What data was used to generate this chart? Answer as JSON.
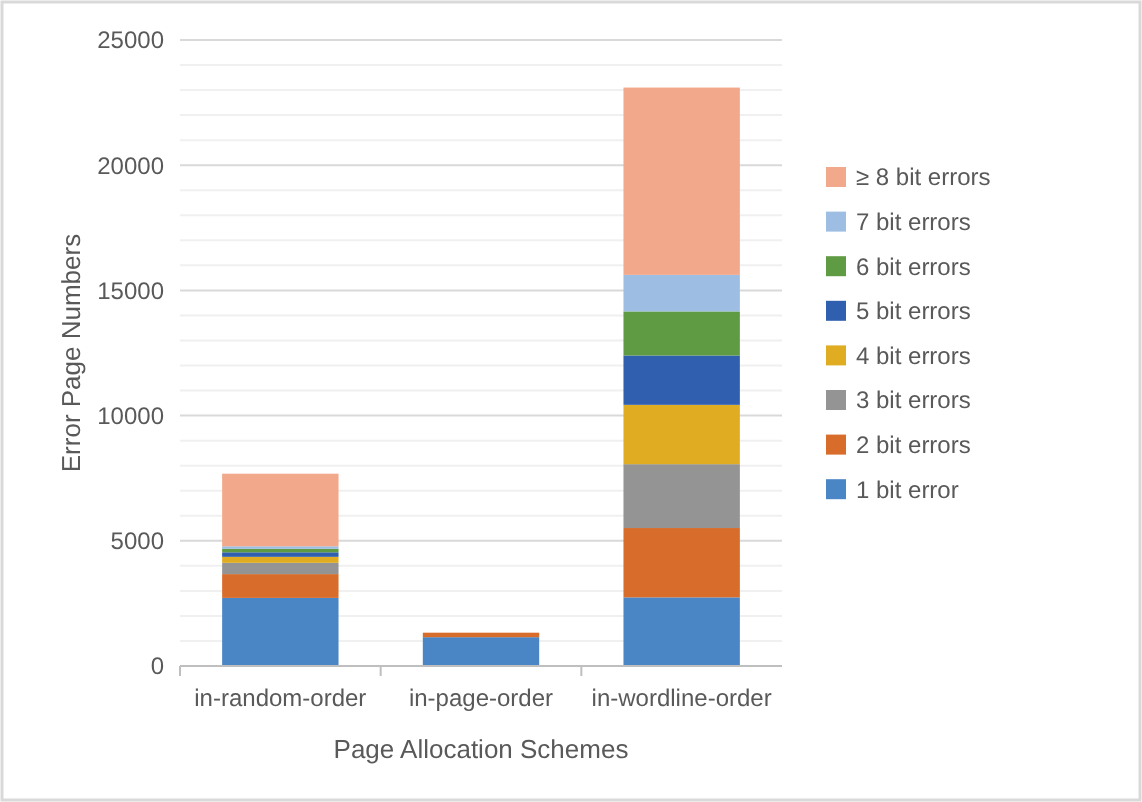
{
  "chart_data": {
    "type": "bar",
    "stacked": true,
    "xlabel": "Page Allocation Schemes",
    "ylabel": "Error Page Numbers",
    "categories": [
      "in-random-order",
      "in-page-order",
      "in-wordline-order"
    ],
    "series": [
      {
        "name": "1 bit error",
        "color": "#4a86c5",
        "values": [
          2720,
          1150,
          2740
        ]
      },
      {
        "name": "2 bit errors",
        "color": "#d86c2a",
        "values": [
          950,
          180,
          2770
        ]
      },
      {
        "name": "3 bit errors",
        "color": "#949494",
        "values": [
          450,
          0,
          2550
        ]
      },
      {
        "name": "4 bit errors",
        "color": "#e0ac22",
        "values": [
          240,
          0,
          2370
        ]
      },
      {
        "name": "5 bit errors",
        "color": "#2f5fae",
        "values": [
          180,
          0,
          1970
        ]
      },
      {
        "name": "6 bit errors",
        "color": "#5f9b42",
        "values": [
          140,
          0,
          1760
        ]
      },
      {
        "name": "7 bit errors",
        "color": "#9dbde3",
        "values": [
          100,
          0,
          1460
        ]
      },
      {
        "name": "≥ 8 bit errors",
        "color": "#f2a88a",
        "values": [
          2900,
          0,
          7480
        ]
      }
    ],
    "ylim": [
      0,
      25000
    ],
    "yticks": [
      0,
      {
        "value": 1000,
        "label": null
      },
      {
        "value": 2000,
        "label": null
      },
      {
        "value": 3000,
        "label": null
      },
      {
        "value": 4000,
        "label": null
      },
      5000,
      {
        "value": 6000,
        "label": null
      },
      {
        "value": 7000,
        "label": null
      },
      {
        "value": 8000,
        "label": null
      },
      {
        "value": 9000,
        "label": null
      },
      10000,
      {
        "value": 11000,
        "label": null
      },
      {
        "value": 12000,
        "label": null
      },
      {
        "value": 13000,
        "label": null
      },
      {
        "value": 14000,
        "label": null
      },
      15000,
      {
        "value": 16000,
        "label": null
      },
      {
        "value": 17000,
        "label": null
      },
      {
        "value": 18000,
        "label": null
      },
      {
        "value": 19000,
        "label": null
      },
      20000,
      {
        "value": 21000,
        "label": null
      },
      {
        "value": 22000,
        "label": null
      },
      {
        "value": 23000,
        "label": null
      },
      {
        "value": 24000,
        "label": null
      },
      25000
    ],
    "grid": true,
    "legend": "right"
  }
}
